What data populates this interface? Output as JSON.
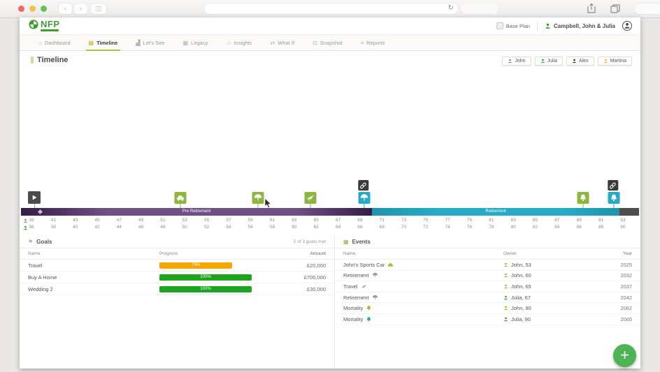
{
  "browser": {
    "reload_glyph": "↻"
  },
  "header": {
    "logo_text": "NFP",
    "base_plan_label": "Base Plan",
    "client_name": "Campbell, John & Julia"
  },
  "nav": {
    "tabs": [
      {
        "id": "dashboard",
        "label": "Dashboard",
        "icon": "dashboard-icon",
        "active": false
      },
      {
        "id": "timeline",
        "label": "Timeline",
        "icon": "timeline-icon",
        "active": true
      },
      {
        "id": "lets-see",
        "label": "Let's See",
        "icon": "lets-see-icon",
        "active": false
      },
      {
        "id": "legacy",
        "label": "Legacy",
        "icon": "legacy-icon",
        "active": false
      },
      {
        "id": "insights",
        "label": "Insights",
        "icon": "insights-icon",
        "active": false
      },
      {
        "id": "what-if",
        "label": "What If",
        "icon": "what-if-icon",
        "active": false
      },
      {
        "id": "snapshot",
        "label": "Snapshot",
        "icon": "snapshot-icon",
        "active": false
      },
      {
        "id": "reports",
        "label": "Reports",
        "icon": "reports-icon",
        "active": false
      }
    ],
    "glyphs": {
      "dashboard": "⌂",
      "timeline": "▤",
      "lets-see": "▟",
      "legacy": "▦",
      "insights": "☼",
      "what-if": "⇄",
      "snapshot": "⊡",
      "reports": "≡"
    }
  },
  "page": {
    "title": "Timeline"
  },
  "people_filter": [
    {
      "name": "John",
      "color": "#7189bd"
    },
    {
      "name": "Julia",
      "color": "#3f9c35"
    },
    {
      "name": "Alex",
      "color": "#2e3d5e"
    },
    {
      "name": "Martina",
      "color": "#e7b71c"
    }
  ],
  "timeline": {
    "phases": [
      {
        "label": "Pre Retirement",
        "color": "#6f5187",
        "color_dark": "#331d46",
        "left_pct": 0,
        "width_pct": 56.8
      },
      {
        "label": "Retirement",
        "color": "#27aac7",
        "color_dark": "#1f93ad",
        "left_pct": 56.8,
        "width_pct": 40.0
      },
      {
        "label": "",
        "color": "#4f4c4c",
        "color_dark": "#4f4c4c",
        "left_pct": 96.8,
        "width_pct": 3.2
      }
    ],
    "markers": [
      {
        "icon": "car-icon",
        "color": "#8cb63f",
        "left_pct": 25.8,
        "linked": false
      },
      {
        "icon": "umbrella-icon",
        "color": "#8cb63f",
        "left_pct": 38.4,
        "linked": false
      },
      {
        "icon": "plane-icon",
        "color": "#8cb63f",
        "left_pct": 46.8,
        "linked": false
      },
      {
        "icon": "umbrella-icon",
        "color": "#27aac7",
        "left_pct": 55.5,
        "linked": true
      },
      {
        "icon": "bell-icon",
        "color": "#8cb63f",
        "left_pct": 90.9,
        "linked": false
      },
      {
        "icon": "bell-icon",
        "color": "#27aac7",
        "left_pct": 95.9,
        "linked": true
      }
    ],
    "axis_rows": [
      {
        "person": "John",
        "color": "#7189bd",
        "ages": [
          39,
          41,
          43,
          45,
          47,
          49,
          51,
          53,
          55,
          57,
          59,
          61,
          63,
          65,
          67,
          69,
          71,
          73,
          75,
          77,
          79,
          81,
          83,
          85,
          87,
          89,
          91,
          93
        ]
      },
      {
        "person": "Julia",
        "color": "#3f9c35",
        "ages": [
          36,
          38,
          40,
          42,
          44,
          46,
          48,
          50,
          52,
          54,
          56,
          58,
          60,
          62,
          64,
          66,
          68,
          70,
          72,
          74,
          76,
          78,
          80,
          82,
          84,
          86,
          88,
          90
        ]
      }
    ]
  },
  "goals": {
    "title": "Goals",
    "summary": "2 of 3 goals met",
    "columns": [
      "Name",
      "Progress",
      "Amount"
    ],
    "rows": [
      {
        "name": "Travel",
        "progress_label": "79%",
        "progress_pct": 79,
        "bar_color": "#f7a600",
        "amount": "£20,000"
      },
      {
        "name": "Buy A Home",
        "progress_label": "100%",
        "progress_pct": 100,
        "bar_color": "#1ea41e",
        "amount": "£700,000"
      },
      {
        "name": "Wedding 2",
        "progress_label": "100%",
        "progress_pct": 100,
        "bar_color": "#1ea41e",
        "amount": "£30,000"
      }
    ]
  },
  "events": {
    "title": "Events",
    "columns": [
      "Name",
      "Owner",
      "Year"
    ],
    "rows": [
      {
        "name": "John's Sports Car",
        "icon": "car-icon",
        "icon_color": "#aeb233",
        "owner": "John, 53",
        "owner_color": "#aeb233",
        "year": "2025"
      },
      {
        "name": "Retirement",
        "icon": "umbrella-icon",
        "icon_color": "#9a9a92",
        "owner": "John, 60",
        "owner_color": "#aeb233",
        "year": "2032"
      },
      {
        "name": "Travel",
        "icon": "plane-icon",
        "icon_color": "#9a9a92",
        "owner": "John, 65",
        "owner_color": "#aeb233",
        "year": "2037"
      },
      {
        "name": "Retirement",
        "icon": "umbrella-icon",
        "icon_color": "#9a9a92",
        "owner": "Julia, 67",
        "owner_color": "#3f9c35",
        "year": "2042"
      },
      {
        "name": "Mortality",
        "icon": "bell-icon",
        "icon_color": "#aeb233",
        "owner": "John, 90",
        "owner_color": "#aeb233",
        "year": "2062"
      },
      {
        "name": "Mortality",
        "icon": "bell-icon",
        "icon_color": "#2bab9b",
        "owner": "Julia, 90",
        "owner_color": "#3f9c35",
        "year": "2065"
      }
    ]
  },
  "fab": {
    "label": "+"
  }
}
